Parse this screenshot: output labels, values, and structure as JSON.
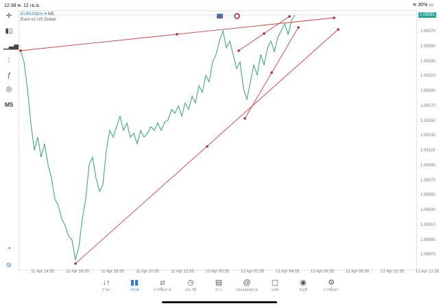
{
  "status_bar": {
    "time": "12:38",
    "date": "พ. 12 เม.ย.",
    "battery": "30%",
    "wifi_icon": "wifi-icon"
  },
  "symbol": {
    "name": "EURUSDm",
    "timeframe": "M5",
    "description": "Euro vs US Dollar"
  },
  "left_toolbar": {
    "timeframe": "M5"
  },
  "colors": {
    "line": "#3daa7f",
    "trendline": "#d93b3b",
    "price_tag": "#26a69a",
    "accent": "#2a7be4"
  },
  "chart_data": {
    "type": "line",
    "current_price": "1.09291",
    "y_ticks": [
      "1.09270",
      "1.09250",
      "1.09230",
      "1.09210",
      "1.09190",
      "1.09170",
      "1.09150",
      "1.09130",
      "1.09110",
      "1.09090",
      "1.09070",
      "1.09050",
      "1.09030",
      "1.09010",
      "1.08990",
      "1.08970"
    ],
    "x_ticks": [
      "11 Apr 14:35",
      "11 Apr 16:35",
      "11 Apr 18:35",
      "11 Apr 20:35",
      "11 Apr 22:35",
      "12 Apr 00:35",
      "12 Apr 02:35",
      "12 Apr 04:35",
      "12 Apr 06:35",
      "12 Apr 08:35",
      "12 Apr 10:35",
      "12 Apr 12:35"
    ],
    "ylim": [
      1.08956,
      1.093
    ],
    "values": [
      1.09243,
      1.09228,
      1.09192,
      1.09146,
      1.09109,
      1.09127,
      1.091,
      1.09118,
      1.0909,
      1.09072,
      1.09044,
      1.09035,
      1.09017,
      1.09008,
      1.08994,
      1.08989,
      1.08962,
      1.0898,
      1.09017,
      1.09044,
      1.0909,
      1.091,
      1.09072,
      1.09054,
      1.09063,
      1.09109,
      1.09136,
      1.09127,
      1.09141,
      1.09155,
      1.09136,
      1.09146,
      1.09127,
      1.09132,
      1.09118,
      1.09136,
      1.09127,
      1.09132,
      1.09141,
      1.09136,
      1.09146,
      1.09136,
      1.09147,
      1.0915,
      1.09164,
      1.09159,
      1.09169,
      1.09155,
      1.09173,
      1.09164,
      1.09182,
      1.09173,
      1.09196,
      1.09187,
      1.0921,
      1.09201,
      1.09228,
      1.09238,
      1.09256,
      1.0927,
      1.09247,
      1.09256,
      1.09238,
      1.09219,
      1.09228,
      1.09192,
      1.09178,
      1.09201,
      1.09224,
      1.0921,
      1.09238,
      1.09224,
      1.09247,
      1.09256,
      1.09242,
      1.09261,
      1.0927,
      1.09279,
      1.09265,
      1.09284,
      1.09291
    ]
  },
  "nav": [
    {
      "label": "ราคา",
      "icon": "↓↑"
    },
    {
      "label": "กราฟ",
      "icon": "▮▮"
    },
    {
      "label": "การซื้อขาย",
      "icon": "⧄"
    },
    {
      "label": "ประวัติ",
      "icon": "◷"
    },
    {
      "label": "ข่าว",
      "icon": "▤"
    },
    {
      "label": "กล่องจดหมาย",
      "icon": "@"
    },
    {
      "label": "แชท",
      "icon": "▢"
    },
    {
      "label": "บัญชี",
      "icon": "◉"
    },
    {
      "label": "การตั้งค่า",
      "icon": "⚙"
    }
  ]
}
